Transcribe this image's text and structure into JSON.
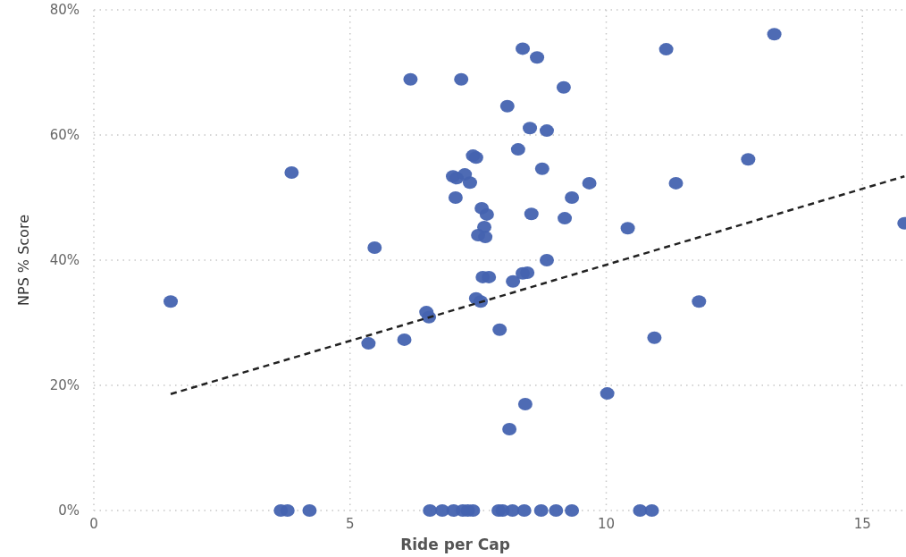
{
  "chart_data": {
    "type": "scatter",
    "xlabel": "Ride per Cap",
    "ylabel": "NPS % Score",
    "xlim": [
      0,
      15.85
    ],
    "ylim": [
      0,
      80
    ],
    "xticks": [
      0,
      5,
      10,
      15
    ],
    "yticks": [
      {
        "value": 0,
        "label": "0%"
      },
      {
        "value": 20,
        "label": "20%"
      },
      {
        "value": 40,
        "label": "40%"
      },
      {
        "value": 60,
        "label": "60%"
      },
      {
        "value": 80,
        "label": "80%"
      }
    ],
    "grid": true,
    "series": [
      {
        "marker": "circle",
        "color": "#4463b0",
        "x": [
          1.5,
          3.86,
          5.48,
          5.36,
          6.06,
          6.18,
          6.49,
          6.54,
          7.17,
          8.37,
          8.65,
          9.17,
          8.07,
          8.51,
          8.84,
          8.28,
          7.4,
          7.46,
          7.01,
          7.08,
          7.24,
          7.34,
          7.06,
          8.75,
          9.67,
          9.33,
          7.57,
          7.67,
          8.54,
          9.19,
          7.62,
          7.5,
          7.64,
          10.42,
          11.36,
          12.77,
          11.17,
          13.28,
          8.84,
          7.46,
          7.55,
          7.59,
          7.71,
          8.18,
          8.37,
          8.46,
          7.92,
          8.42,
          8.11,
          10.02,
          10.94,
          11.81,
          15.82,
          3.65,
          3.78,
          4.21,
          6.56,
          6.8,
          7.02,
          7.2,
          7.3,
          7.4,
          7.9,
          7.98,
          8.17,
          8.4,
          8.73,
          9.02,
          9.33,
          10.66,
          10.89
        ],
        "values": [
          33.4,
          54,
          42,
          26.7,
          27.3,
          68.9,
          31.7,
          30.9,
          68.9,
          73.8,
          72.4,
          67.6,
          64.6,
          61.1,
          60.7,
          57.7,
          56.7,
          56.4,
          53.4,
          53.1,
          53.7,
          52.4,
          50,
          54.6,
          52.3,
          50,
          48.3,
          47.3,
          47.4,
          46.7,
          45.3,
          44,
          43.7,
          45.1,
          52.3,
          56.1,
          73.7,
          76.1,
          40,
          33.9,
          33.4,
          37.3,
          37.3,
          36.6,
          37.9,
          38,
          28.9,
          17,
          13,
          18.7,
          27.6,
          33.4,
          45.9,
          0,
          0,
          0,
          0,
          0,
          0,
          0,
          0,
          0,
          0,
          0,
          0,
          0,
          0,
          0,
          0,
          0,
          0
        ]
      },
      {
        "type": "line",
        "color": "#222222",
        "line_style": "dashed",
        "x": [
          1.5,
          15.82
        ],
        "values": [
          18.6,
          53.4
        ]
      }
    ]
  }
}
